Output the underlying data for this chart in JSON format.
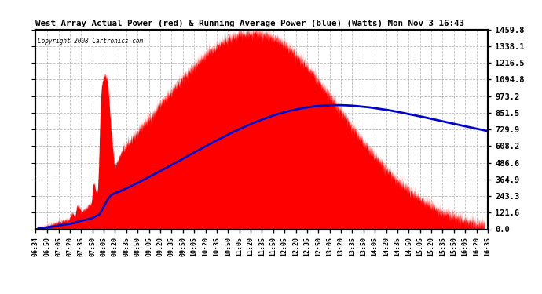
{
  "title": "West Array Actual Power (red) & Running Average Power (blue) (Watts) Mon Nov 3 16:43",
  "copyright": "Copyright 2008 Cartronics.com",
  "yticks": [
    0.0,
    121.6,
    243.3,
    364.9,
    486.6,
    608.2,
    729.9,
    851.5,
    973.2,
    1094.8,
    1216.5,
    1338.1,
    1459.8
  ],
  "ymax": 1459.8,
  "ymin": 0.0,
  "bg_color": "#ffffff",
  "plot_bg_color": "#ffffff",
  "grid_color": "#aaaaaa",
  "title_color": "#000000",
  "red_color": "#ff0000",
  "blue_color": "#0000cc",
  "xtick_labels": [
    "06:34",
    "06:50",
    "07:05",
    "07:20",
    "07:35",
    "07:50",
    "08:05",
    "08:20",
    "08:35",
    "08:50",
    "09:05",
    "09:20",
    "09:35",
    "09:50",
    "10:05",
    "10:20",
    "10:35",
    "10:50",
    "11:05",
    "11:20",
    "11:35",
    "11:50",
    "12:05",
    "12:20",
    "12:35",
    "12:50",
    "13:05",
    "13:20",
    "13:35",
    "13:50",
    "14:05",
    "14:20",
    "14:35",
    "14:50",
    "15:05",
    "15:20",
    "15:35",
    "15:50",
    "16:05",
    "16:20",
    "16:35"
  ]
}
